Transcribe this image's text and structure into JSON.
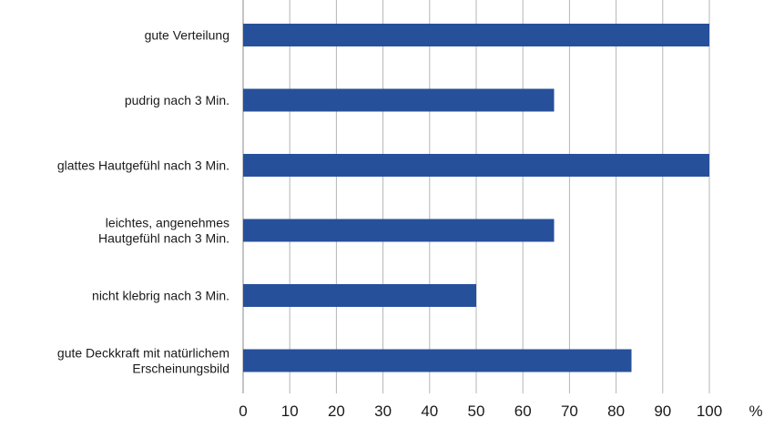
{
  "chart_data": {
    "type": "bar",
    "orientation": "horizontal",
    "categories": [
      [
        "gute Verteilung"
      ],
      [
        "pudrig nach 3 Min."
      ],
      [
        "glattes Hautgefühl nach 3 Min."
      ],
      [
        "leichtes, angenehmes",
        "Hautgefühl nach 3 Min."
      ],
      [
        "nicht klebrig nach 3 Min."
      ],
      [
        "gute Deckkraft mit natürlichem",
        "Erscheinungsbild"
      ]
    ],
    "values": [
      100,
      66.7,
      100,
      66.7,
      50,
      83.3
    ],
    "xlim": [
      0,
      100
    ],
    "xticks": [
      "0",
      "10",
      "20",
      "30",
      "40",
      "50",
      "60",
      "70",
      "80",
      "90",
      "100"
    ],
    "unit": "%",
    "bar_color": "#27509b",
    "grid": true
  }
}
